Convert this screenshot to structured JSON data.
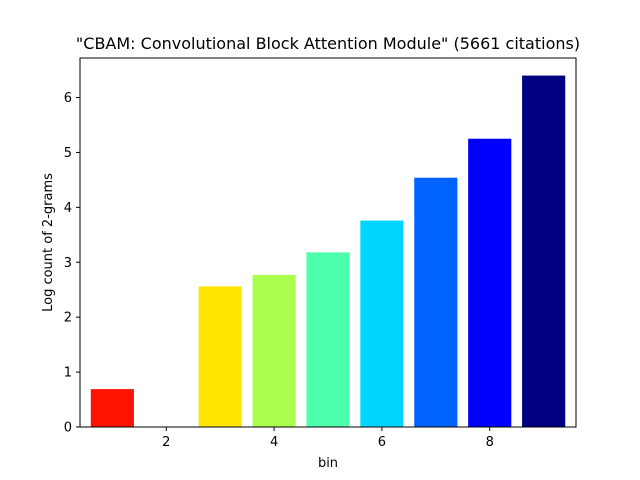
{
  "chart_data": {
    "type": "bar",
    "title": "\"CBAM: Convolutional Block Attention Module\" (5661 citations)",
    "xlabel": "bin",
    "ylabel": "Log count of 2-grams",
    "x": [
      1,
      2,
      3,
      4,
      5,
      6,
      7,
      8,
      9
    ],
    "values": [
      0.69,
      0,
      2.56,
      2.77,
      3.18,
      3.76,
      4.54,
      5.25,
      6.4
    ],
    "colors": [
      "#ff1300",
      "#ffffff",
      "#ffe600",
      "#aaff4d",
      "#4dffaa",
      "#00d5ff",
      "#0063ff",
      "#0000ff",
      "#000080"
    ],
    "xlim": [
      0.4,
      9.6
    ],
    "ylim": [
      0,
      6.72
    ],
    "xticks": [
      2,
      4,
      6,
      8
    ],
    "yticks": [
      0,
      1,
      2,
      3,
      4,
      5,
      6
    ],
    "grid": false
  }
}
